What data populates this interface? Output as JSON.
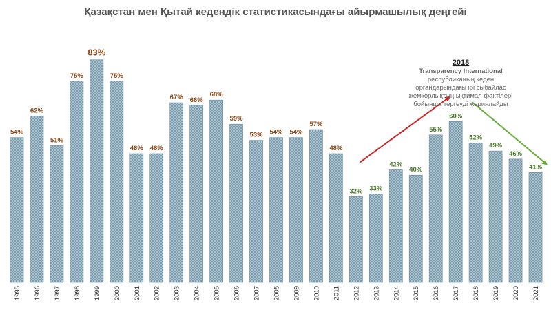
{
  "chart_data": {
    "type": "bar",
    "title": "Қазақстан мен Қытай кедендік статистикасындағы айырмашылық деңгейі",
    "xlabel": "",
    "ylabel": "",
    "ylim": [
      0,
      95
    ],
    "grid": false,
    "value_suffix": "%",
    "categories": [
      "1995",
      "1996",
      "1997",
      "1998",
      "1999",
      "2000",
      "2001",
      "2002",
      "2003",
      "2004",
      "2005",
      "2006",
      "2007",
      "2008",
      "2009",
      "2010",
      "2011",
      "2012",
      "2013",
      "2014",
      "2015",
      "2016",
      "2017",
      "2018",
      "2019",
      "2020",
      "2021"
    ],
    "values": [
      54,
      62,
      51,
      75,
      83,
      75,
      48,
      48,
      67,
      66,
      68,
      59,
      53,
      54,
      54,
      57,
      48,
      32,
      33,
      42,
      40,
      55,
      60,
      52,
      49,
      46,
      41
    ],
    "highlight_category": "1999",
    "label_colors": {
      "brown": "#8B4513",
      "green": "#4B7A2A"
    },
    "green_label_categories": [
      "2012",
      "2013",
      "2014",
      "2015",
      "2016",
      "2017",
      "2018",
      "2019",
      "2020",
      "2021"
    ],
    "bar_colors": {
      "fill": "#A9C6D6",
      "hatch": "#5E7F8F",
      "stroke": "#6E8C9C"
    },
    "arrows": [
      {
        "name": "rising-trend-arrow",
        "color": "#C62828",
        "from_category": "2012",
        "to_category": "2016"
      },
      {
        "name": "falling-trend-arrow",
        "color": "#6AAF3C",
        "from_category": "2017",
        "to_category": "2021"
      }
    ],
    "annotation": {
      "year": "2018",
      "organization": "Transparency International",
      "lines": [
        "республиканың кеден",
        "органдарындағы ірі сыбайлас",
        "жемқорлықтың ықтимал фактілері",
        "бойынша тергеуді жариялайды"
      ]
    }
  }
}
